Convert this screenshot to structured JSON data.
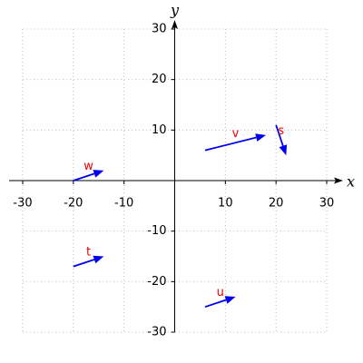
{
  "chart_data": {
    "type": "vector",
    "xlabel": "x",
    "ylabel": "y",
    "xlim": [
      -30,
      30
    ],
    "ylim": [
      -30,
      30
    ],
    "xticks": [
      -30,
      -20,
      -10,
      10,
      20,
      30
    ],
    "yticks": [
      -30,
      -20,
      -10,
      10,
      20,
      30
    ],
    "grid": true,
    "arrow_color": "#0000ee",
    "label_color": "#ee0000",
    "series": [
      {
        "name": "w",
        "x0": -20,
        "y0": 0,
        "x1": -14,
        "y1": 2
      },
      {
        "name": "t",
        "x0": -20,
        "y0": -17,
        "x1": -14,
        "y1": -15
      },
      {
        "name": "u",
        "x0": 6,
        "y0": -25,
        "x1": 12,
        "y1": -23
      },
      {
        "name": "v",
        "x0": 6,
        "y0": 6,
        "x1": 18,
        "y1": 9
      },
      {
        "name": "s",
        "x0": 20,
        "y0": 11,
        "x1": 22,
        "y1": 5
      }
    ]
  }
}
